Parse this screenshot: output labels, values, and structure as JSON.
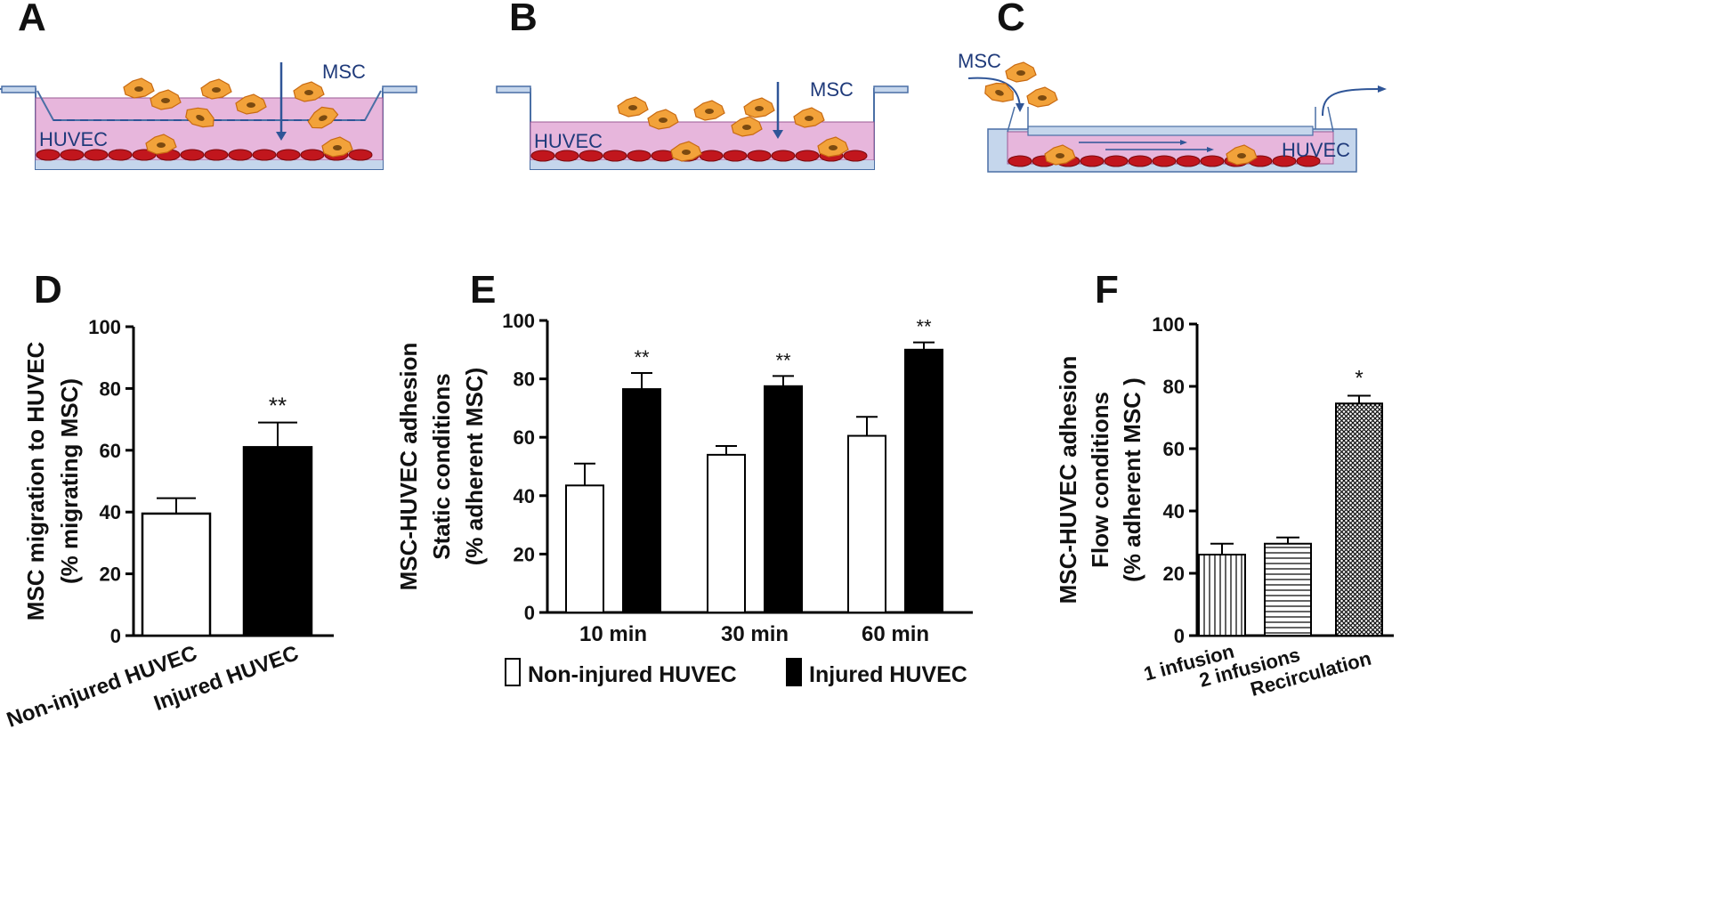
{
  "diagrams": {
    "A": {
      "letter": "A",
      "msc_label": "MSC",
      "huvec_label": "HUVEC"
    },
    "B": {
      "letter": "B",
      "msc_label": "MSC",
      "huvec_label": "HUVEC"
    },
    "C": {
      "letter": "C",
      "msc_label": "MSC",
      "huvec_label": "HUVEC"
    }
  },
  "colors": {
    "medium": "#e7b6dc",
    "well": "#c5d6ec",
    "well_edge": "#4a6fa5",
    "endothelium": "#c1161d",
    "msc": "#f2a23a",
    "arrow": "#2f5597"
  },
  "chart_data": [
    {
      "panel": "D",
      "type": "bar",
      "categories": [
        "Non-injured HUVEC",
        "Injured HUVEC"
      ],
      "values": [
        39.5,
        61
      ],
      "errors": [
        5,
        8
      ],
      "significance": [
        "",
        "**"
      ],
      "fills": [
        "white",
        "black"
      ],
      "ylabel_lines": [
        "MSC migration to HUVEC",
        "(% migrating MSC)"
      ],
      "ylim": [
        0,
        100
      ],
      "yticks": [
        0,
        20,
        40,
        60,
        80,
        100
      ]
    },
    {
      "panel": "E",
      "type": "bar",
      "categories": [
        "10 min",
        "30 min",
        "60 min"
      ],
      "series": [
        {
          "name": "Non-injured HUVEC",
          "values": [
            43.5,
            54,
            60.5
          ],
          "errors": [
            7.5,
            3,
            6.5
          ],
          "significance": [
            "",
            "",
            ""
          ],
          "fill": "white"
        },
        {
          "name": "Injured HUVEC",
          "values": [
            76.5,
            77.5,
            90
          ],
          "errors": [
            5.5,
            3.5,
            2.5
          ],
          "significance": [
            "**",
            "**",
            "**"
          ],
          "fill": "black"
        }
      ],
      "ylabel_lines": [
        "MSC-HUVEC adhesion",
        "Static conditions",
        "(% adherent MSC)"
      ],
      "ylim": [
        0,
        100
      ],
      "yticks": [
        0,
        20,
        40,
        60,
        80,
        100
      ],
      "legend_position": "bottom"
    },
    {
      "panel": "F",
      "type": "bar",
      "categories": [
        "1 infusion",
        "2 infusions",
        "Recirculation"
      ],
      "values": [
        26,
        29.5,
        74.5
      ],
      "errors": [
        3.5,
        2,
        2.5
      ],
      "significance": [
        "",
        "",
        "*"
      ],
      "fills": [
        "vertical-hatch",
        "horizontal-hatch",
        "crosshatch"
      ],
      "ylabel_lines": [
        "MSC-HUVEC adhesion",
        "Flow conditions",
        "(% adherent MSC )"
      ],
      "ylim": [
        0,
        100
      ],
      "yticks": [
        0,
        20,
        40,
        60,
        80,
        100
      ]
    }
  ]
}
